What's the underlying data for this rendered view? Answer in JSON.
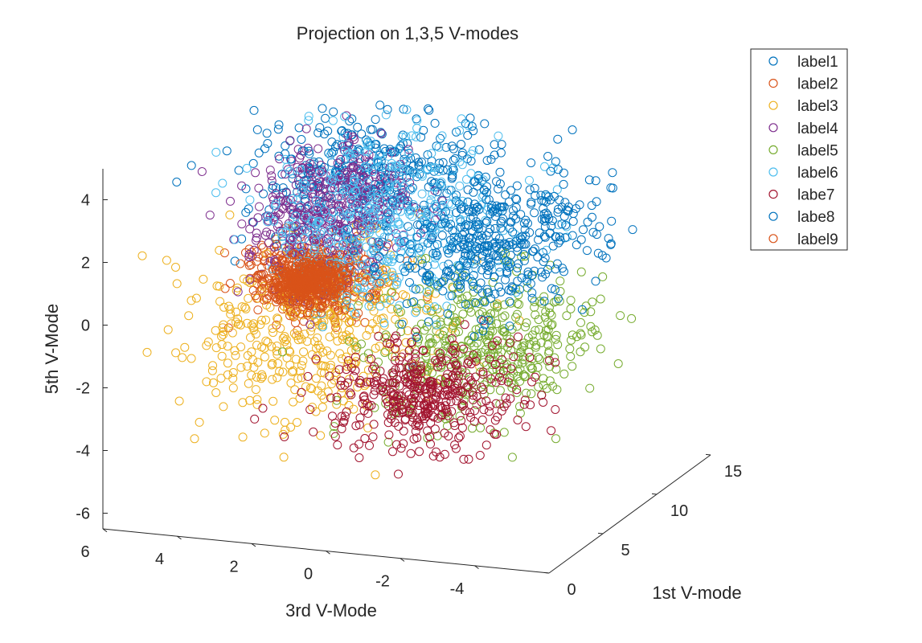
{
  "chart_data": {
    "type": "scatter",
    "title": "Projection on 1,3,5 V-modes",
    "xlabel": "3rd V-Mode",
    "ylabel": "1st V-mode",
    "zlabel": "5th V-Mode",
    "projection": "3d",
    "xlim": [
      -6,
      6
    ],
    "ylim": [
      0,
      15
    ],
    "zlim": [
      -6,
      5
    ],
    "x_ticks": [
      6,
      4,
      2,
      0,
      -2,
      -4
    ],
    "x_tick_labels": [
      "6",
      "4",
      "2",
      "0",
      "-2",
      "-4"
    ],
    "y_ticks": [
      0,
      5,
      10,
      15
    ],
    "y_tick_labels": [
      "0",
      "5",
      "10",
      "15"
    ],
    "z_ticks": [
      4,
      2,
      0,
      -2,
      -4,
      -6
    ],
    "z_tick_labels": [
      "4",
      "2",
      "0",
      "-2",
      "-4",
      "-6"
    ],
    "marker": "open-circle",
    "grid": false,
    "legend_position": "top-right",
    "series": [
      {
        "name": "label1",
        "color": "#0072BD",
        "x_center": 1.0,
        "y_center": 7.5,
        "z_center": 3.4,
        "spread": [
          1.5,
          2.5,
          0.9
        ]
      },
      {
        "name": "label2",
        "color": "#D95319",
        "x_center": 2.5,
        "y_center": 7.5,
        "z_center": 0.0,
        "spread": [
          0.8,
          1.0,
          0.5
        ]
      },
      {
        "name": "label3",
        "color": "#EDB120",
        "x_center": 2.3,
        "y_center": 6.5,
        "z_center": -1.5,
        "spread": [
          1.5,
          3.0,
          1.2
        ]
      },
      {
        "name": "label4",
        "color": "#7E2F8E",
        "x_center": 2.3,
        "y_center": 8.0,
        "z_center": 2.0,
        "spread": [
          0.9,
          2.0,
          1.0
        ]
      },
      {
        "name": "label5",
        "color": "#77AC30",
        "x_center": -2.2,
        "y_center": 7.0,
        "z_center": -1.5,
        "spread": [
          1.3,
          2.5,
          1.0
        ]
      },
      {
        "name": "label6",
        "color": "#4DBEEE",
        "x_center": 0.5,
        "y_center": 7.5,
        "z_center": 2.0,
        "spread": [
          1.5,
          2.5,
          1.3
        ]
      },
      {
        "name": "labe7",
        "color": "#A2142F",
        "x_center": -0.7,
        "y_center": 7.0,
        "z_center": -3.2,
        "spread": [
          1.2,
          2.0,
          0.7
        ]
      },
      {
        "name": "labe8",
        "color": "#0072BD",
        "x_center": -2.3,
        "y_center": 8.0,
        "z_center": 1.6,
        "spread": [
          1.2,
          2.5,
          0.9
        ]
      },
      {
        "name": "label9",
        "color": "#D95319",
        "x_center": 2.5,
        "y_center": 7.0,
        "z_center": 0.0,
        "spread": [
          0.5,
          0.8,
          0.3
        ]
      }
    ]
  }
}
